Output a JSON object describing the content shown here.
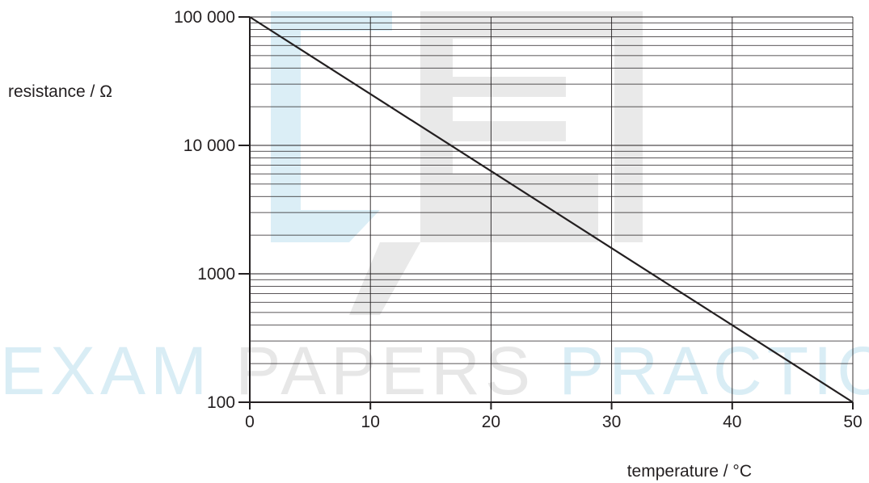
{
  "watermark": {
    "text": "EXAM PAPERS PRACTICE",
    "colors": {
      "logo_light": "#dbeef6",
      "logo_gray": "#e9e9e9",
      "text_light": "#d9edf5",
      "text_gray": "#e7e7e7"
    }
  },
  "chart_data": {
    "type": "line",
    "title": "",
    "xlabel": "temperature / °C",
    "ylabel": "resistance / Ω",
    "x_scale": "linear",
    "y_scale": "log",
    "xlim": [
      0,
      50
    ],
    "ylim": [
      100,
      100000
    ],
    "x_ticks": [
      0,
      10,
      20,
      30,
      40,
      50
    ],
    "x_tick_labels": [
      "0",
      "10",
      "20",
      "30",
      "40",
      "50"
    ],
    "y_ticks": [
      100,
      1000,
      10000,
      100000
    ],
    "y_tick_labels": [
      "100",
      "1000",
      "10 000",
      "100 000"
    ],
    "grid": {
      "x_major_step": 10,
      "y_minor": "log subdivisions 2–9 per decade"
    },
    "series": [
      {
        "x": [
          0,
          50
        ],
        "y": [
          100000,
          100
        ]
      }
    ],
    "colors": {
      "line": "#231f20",
      "grid": "#231f20"
    }
  }
}
